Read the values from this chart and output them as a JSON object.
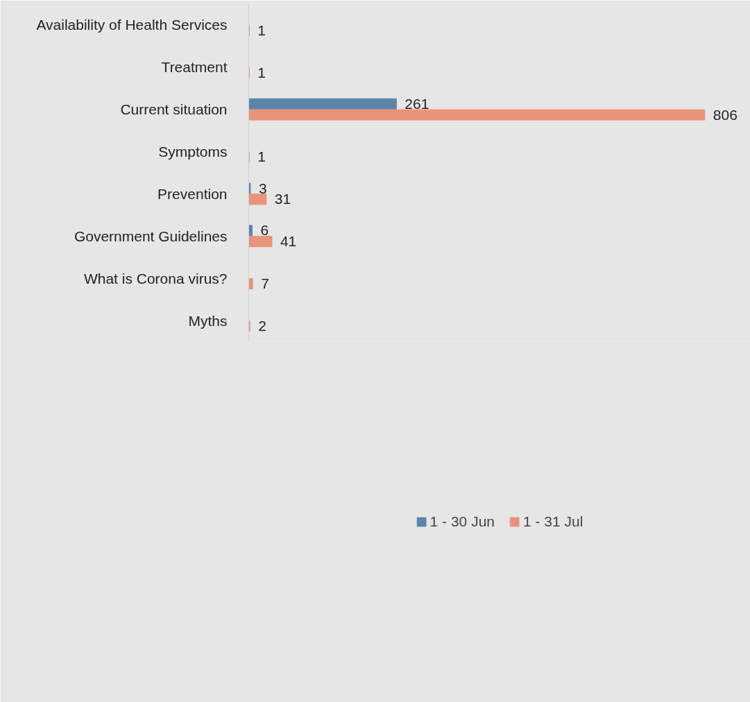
{
  "chart_data": {
    "type": "bar",
    "orientation": "horizontal",
    "categories": [
      "Availability of Health Services",
      "Treatment",
      "Current situation",
      "Symptoms",
      "Prevention",
      "Government Guidelines",
      "What is Corona virus?",
      "Myths"
    ],
    "series": [
      {
        "name": "1 - 30 Jun",
        "color": "#5b84ab",
        "values": [
          null,
          null,
          261,
          null,
          3,
          6,
          null,
          null
        ]
      },
      {
        "name": "1 - 31 Jul",
        "color": "#e8937a",
        "values": [
          1,
          1,
          806,
          1,
          31,
          41,
          7,
          2
        ]
      }
    ],
    "data_labels": true,
    "legend": "bottom"
  }
}
